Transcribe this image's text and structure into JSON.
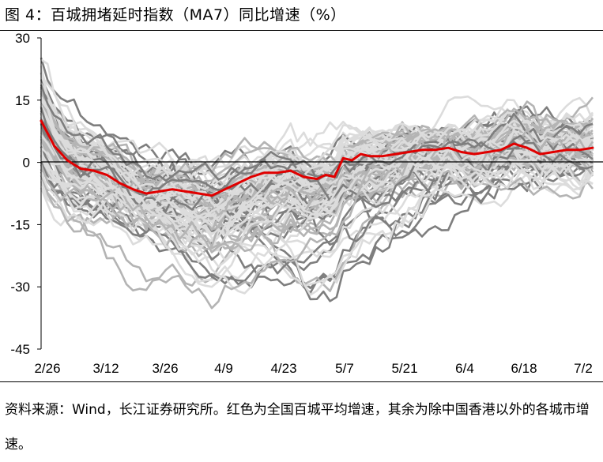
{
  "title": "图 4：百城拥堵延时指数（MA7）同比增速（%）",
  "source_note": "资料来源：Wind，长江证券研究所。红色为全国百城平均增速，其余为除中国香港以外的各城市增速。",
  "colors": {
    "national": "#e00000",
    "city_light": "#dcdcdc",
    "city_mid": "#b4b4b4",
    "city_dark": "#7e7e7e",
    "zero_line": "#000000"
  },
  "chart_data": {
    "type": "line",
    "title": "",
    "xlabel": "",
    "ylabel": "",
    "ylim": [
      -45,
      30
    ],
    "yticks": [
      30,
      15,
      0,
      -15,
      -30,
      -45
    ],
    "x_ticks": [
      "2/26",
      "3/12",
      "3/26",
      "4/9",
      "4/23",
      "5/7",
      "5/21",
      "6/4",
      "6/18",
      "7/2"
    ],
    "x_range_days": [
      0,
      126
    ],
    "grid": false,
    "legend": "none",
    "series": [
      {
        "role": "national average",
        "x_days": [
          0,
          1,
          3,
          6,
          9,
          12,
          15,
          18,
          21,
          24,
          27,
          30,
          33,
          36,
          39,
          42,
          45,
          48,
          51,
          54,
          57,
          60,
          63,
          65,
          67,
          69,
          71,
          73,
          75,
          78,
          81,
          84,
          87,
          90,
          93,
          96,
          99,
          102,
          105,
          108,
          111,
          114,
          117,
          120,
          123,
          126
        ],
        "values": [
          10,
          8,
          4,
          0.5,
          -1.5,
          -2,
          -3,
          -5,
          -6.5,
          -7.5,
          -7,
          -6.5,
          -7,
          -7.5,
          -8,
          -6.5,
          -5,
          -3.5,
          -2.5,
          -2.5,
          -2,
          -3.5,
          -4,
          -3,
          -3.5,
          1,
          0.5,
          2,
          1.5,
          1.5,
          2,
          2.5,
          3,
          3,
          3.5,
          2.5,
          2,
          2.5,
          3,
          4.5,
          3.5,
          2,
          2.5,
          3,
          3,
          3.5
        ]
      }
    ],
    "city_series_count": 99
  }
}
